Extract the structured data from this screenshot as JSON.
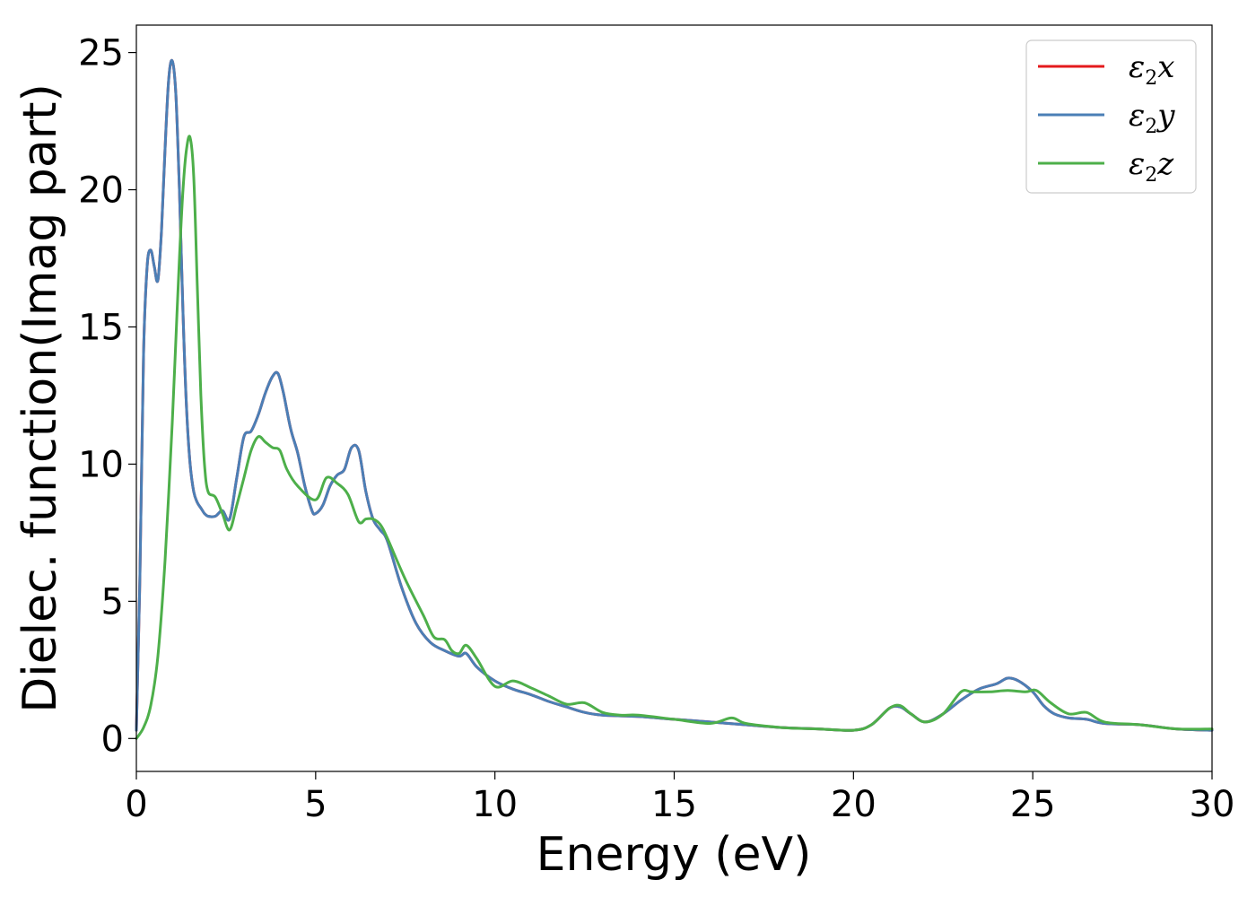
{
  "chart_data": {
    "type": "line",
    "xlabel": "Energy (eV)",
    "ylabel": "Dielec. function(Imag part)",
    "xlim": [
      0,
      30
    ],
    "ylim": [
      -1.2,
      26
    ],
    "xticks": [
      0,
      5,
      10,
      15,
      20,
      25,
      30
    ],
    "yticks": [
      0,
      5,
      10,
      15,
      20,
      25
    ],
    "grid": false,
    "legend_position": "top-right",
    "series": [
      {
        "name": "ε₂x",
        "legend": {
          "base": "ε",
          "sub": "2",
          "var": "x"
        },
        "color": "#e41a1c",
        "x": [
          0,
          0.1,
          0.2,
          0.3,
          0.4,
          0.5,
          0.6,
          0.7,
          0.8,
          0.9,
          1.0,
          1.1,
          1.2,
          1.3,
          1.4,
          1.5,
          1.6,
          1.7,
          1.8,
          1.9,
          2.0,
          2.2,
          2.4,
          2.6,
          2.8,
          3.0,
          3.2,
          3.4,
          3.6,
          3.8,
          3.95,
          4.1,
          4.3,
          4.5,
          4.7,
          4.9,
          5.0,
          5.2,
          5.4,
          5.6,
          5.8,
          6.0,
          6.2,
          6.4,
          6.6,
          6.8,
          7.0,
          7.4,
          7.8,
          8.2,
          8.6,
          9.0,
          9.2,
          9.5,
          10.0,
          10.5,
          11.0,
          11.5,
          12.0,
          12.5,
          13.0,
          14.0,
          15.0,
          16.0,
          17.0,
          18.0,
          19.0,
          20.0,
          20.5,
          21.0,
          21.3,
          21.6,
          22.0,
          22.5,
          23.0,
          23.5,
          24.0,
          24.3,
          24.6,
          25.0,
          25.3,
          25.6,
          26.0,
          26.5,
          27.0,
          28.0,
          29.0,
          30.0
        ],
        "y": [
          0.3,
          6,
          14,
          17.2,
          17.8,
          17.2,
          16.7,
          18.5,
          21.5,
          24,
          24.7,
          23.5,
          20,
          15.5,
          12,
          10,
          9,
          8.6,
          8.4,
          8.2,
          8.1,
          8.1,
          8.3,
          8.0,
          9.5,
          11.0,
          11.2,
          11.8,
          12.6,
          13.2,
          13.3,
          12.6,
          11.3,
          10.4,
          9.2,
          8.3,
          8.2,
          8.5,
          9.2,
          9.6,
          9.8,
          10.6,
          10.5,
          9.0,
          8.0,
          7.6,
          7.2,
          5.5,
          4.2,
          3.5,
          3.2,
          3.0,
          3.1,
          2.6,
          2.1,
          1.8,
          1.6,
          1.35,
          1.15,
          0.95,
          0.85,
          0.8,
          0.7,
          0.6,
          0.5,
          0.4,
          0.35,
          0.3,
          0.5,
          1.1,
          1.15,
          0.9,
          0.6,
          0.9,
          1.4,
          1.8,
          2.0,
          2.2,
          2.1,
          1.7,
          1.2,
          0.9,
          0.75,
          0.7,
          0.55,
          0.5,
          0.35,
          0.3
        ]
      },
      {
        "name": "ε₂y",
        "legend": {
          "base": "ε",
          "sub": "2",
          "var": "y"
        },
        "color": "#4b7fb6",
        "x": [
          0,
          0.1,
          0.2,
          0.3,
          0.4,
          0.5,
          0.6,
          0.7,
          0.8,
          0.9,
          1.0,
          1.1,
          1.2,
          1.3,
          1.4,
          1.5,
          1.6,
          1.7,
          1.8,
          1.9,
          2.0,
          2.2,
          2.4,
          2.6,
          2.8,
          3.0,
          3.2,
          3.4,
          3.6,
          3.8,
          3.95,
          4.1,
          4.3,
          4.5,
          4.7,
          4.9,
          5.0,
          5.2,
          5.4,
          5.6,
          5.8,
          6.0,
          6.2,
          6.4,
          6.6,
          6.8,
          7.0,
          7.4,
          7.8,
          8.2,
          8.6,
          9.0,
          9.2,
          9.5,
          10.0,
          10.5,
          11.0,
          11.5,
          12.0,
          12.5,
          13.0,
          14.0,
          15.0,
          16.0,
          17.0,
          18.0,
          19.0,
          20.0,
          20.5,
          21.0,
          21.3,
          21.6,
          22.0,
          22.5,
          23.0,
          23.5,
          24.0,
          24.3,
          24.6,
          25.0,
          25.3,
          25.6,
          26.0,
          26.5,
          27.0,
          28.0,
          29.0,
          30.0
        ],
        "y": [
          0.3,
          6,
          14,
          17.2,
          17.8,
          17.2,
          16.7,
          18.5,
          21.5,
          24,
          24.7,
          23.5,
          20,
          15.5,
          12,
          10,
          9,
          8.6,
          8.4,
          8.2,
          8.1,
          8.1,
          8.3,
          8.0,
          9.5,
          11.0,
          11.2,
          11.8,
          12.6,
          13.2,
          13.3,
          12.6,
          11.3,
          10.4,
          9.2,
          8.3,
          8.2,
          8.5,
          9.2,
          9.6,
          9.8,
          10.6,
          10.5,
          9.0,
          8.0,
          7.6,
          7.2,
          5.5,
          4.2,
          3.5,
          3.2,
          3.0,
          3.1,
          2.6,
          2.1,
          1.8,
          1.6,
          1.35,
          1.15,
          0.95,
          0.85,
          0.8,
          0.7,
          0.6,
          0.5,
          0.4,
          0.35,
          0.3,
          0.5,
          1.1,
          1.15,
          0.9,
          0.6,
          0.9,
          1.4,
          1.8,
          2.0,
          2.2,
          2.1,
          1.7,
          1.2,
          0.9,
          0.75,
          0.7,
          0.55,
          0.5,
          0.35,
          0.3
        ]
      },
      {
        "name": "ε₂z",
        "legend": {
          "base": "ε",
          "sub": "2",
          "var": "z"
        },
        "color": "#4daf4a",
        "x": [
          0,
          0.2,
          0.4,
          0.6,
          0.8,
          1.0,
          1.1,
          1.2,
          1.3,
          1.4,
          1.5,
          1.6,
          1.7,
          1.8,
          1.9,
          2.0,
          2.2,
          2.4,
          2.6,
          2.8,
          3.0,
          3.2,
          3.4,
          3.6,
          3.8,
          4.0,
          4.2,
          4.5,
          5.0,
          5.3,
          5.6,
          5.9,
          6.2,
          6.4,
          6.6,
          6.8,
          7.0,
          7.5,
          8.0,
          8.3,
          8.6,
          8.8,
          9.0,
          9.2,
          9.5,
          10.0,
          10.5,
          11.0,
          11.5,
          12.0,
          12.5,
          13.0,
          13.5,
          14.0,
          15.0,
          16.0,
          16.6,
          17.0,
          18.0,
          19.0,
          20.0,
          20.5,
          21.0,
          21.3,
          21.6,
          22.0,
          22.5,
          23.0,
          23.3,
          23.8,
          24.3,
          24.8,
          25.1,
          25.5,
          26.0,
          26.5,
          27.0,
          28.0,
          29.0,
          30.0
        ],
        "y": [
          0.0,
          0.4,
          1.2,
          3.0,
          6.5,
          11.5,
          14.5,
          17.5,
          20,
          21.5,
          21.9,
          20.5,
          16.5,
          12.5,
          10,
          9.0,
          8.8,
          8.2,
          7.6,
          8.5,
          9.5,
          10.5,
          11.0,
          10.8,
          10.6,
          10.5,
          9.8,
          9.2,
          8.7,
          9.5,
          9.3,
          8.9,
          7.9,
          8.0,
          8.0,
          7.8,
          7.3,
          5.8,
          4.5,
          3.7,
          3.6,
          3.2,
          3.1,
          3.4,
          2.9,
          1.9,
          2.1,
          1.85,
          1.55,
          1.25,
          1.3,
          0.95,
          0.85,
          0.85,
          0.7,
          0.55,
          0.75,
          0.55,
          0.4,
          0.35,
          0.3,
          0.5,
          1.1,
          1.2,
          0.9,
          0.6,
          0.9,
          1.7,
          1.7,
          1.7,
          1.75,
          1.7,
          1.75,
          1.3,
          0.9,
          0.95,
          0.6,
          0.5,
          0.35,
          0.35
        ]
      }
    ]
  }
}
